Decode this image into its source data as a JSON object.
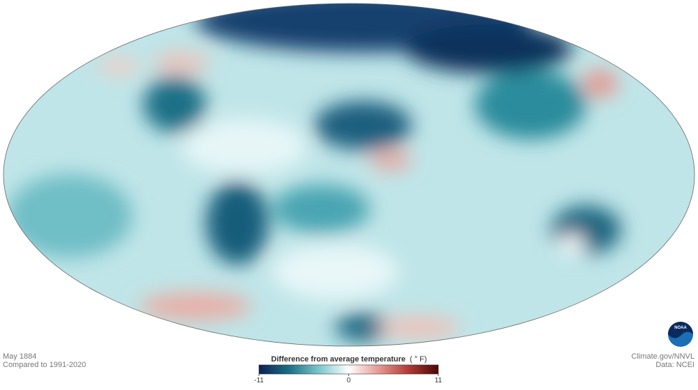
{
  "footer": {
    "date": "May 1884",
    "baseline": "Compared to 1991-2020",
    "credit": "Climate.gov/NNVL",
    "source": "Data: NCEI"
  },
  "logo": "NOAA",
  "legend": {
    "title": "Difference from average temperature",
    "unit": "( ° F)",
    "range": [
      -11,
      11
    ],
    "ticks": [
      -11,
      0,
      11
    ],
    "colors": [
      "#0e1f55",
      "#1a6f86",
      "#7cc6cc",
      "#ffffff",
      "#e59a93",
      "#b23a36",
      "#4a0808"
    ]
  }
}
